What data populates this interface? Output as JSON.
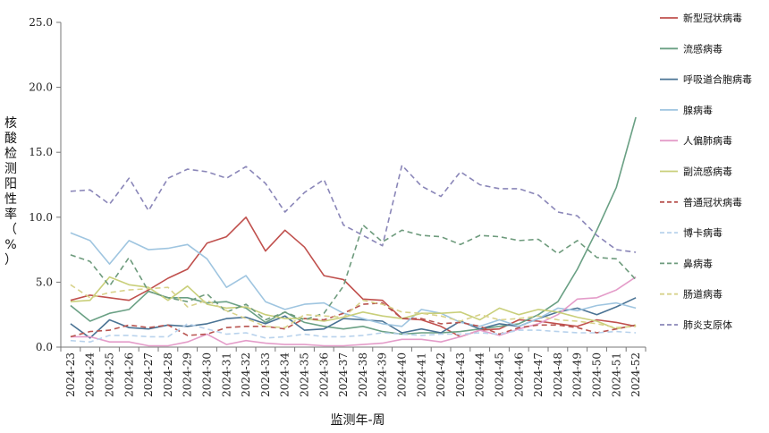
{
  "chart_data": {
    "type": "line",
    "xlabel": "监测年-周",
    "ylabel": "核酸检测阳性率（%）",
    "ylim": [
      0,
      25
    ],
    "yticks": [
      "0.0",
      "5.0",
      "10.0",
      "15.0",
      "20.0",
      "25.0"
    ],
    "ytick_values": [
      0,
      5,
      10,
      15,
      20,
      25
    ],
    "grid": false,
    "legend_position": "right",
    "categories": [
      "2024-23",
      "2024-24",
      "2024-25",
      "2024-26",
      "2024-27",
      "2024-28",
      "2024-29",
      "2024-30",
      "2024-31",
      "2024-32",
      "2024-33",
      "2024-34",
      "2024-35",
      "2024-36",
      "2024-37",
      "2024-38",
      "2024-39",
      "2024-40",
      "2024-41",
      "2024-42",
      "2024-43",
      "2024-44",
      "2024-45",
      "2024-46",
      "2024-47",
      "2024-48",
      "2024-49",
      "2024-50",
      "2024-51",
      "2024-52"
    ],
    "series": [
      {
        "name": "新型冠状病毒",
        "color": "#c0504d",
        "dash": "solid",
        "values": [
          3.6,
          4.0,
          3.8,
          3.6,
          4.4,
          5.3,
          6.0,
          8.0,
          8.5,
          10.0,
          7.4,
          9.0,
          7.7,
          5.5,
          5.2,
          3.7,
          3.6,
          2.2,
          2.1,
          1.6,
          0.8,
          1.3,
          1.4,
          2.1,
          2.0,
          1.8,
          1.6,
          2.1,
          1.9,
          1.6
        ]
      },
      {
        "name": "流感病毒",
        "color": "#6aa084",
        "dash": "solid",
        "values": [
          3.2,
          2.0,
          2.6,
          2.9,
          4.3,
          3.8,
          3.8,
          3.4,
          3.5,
          3.0,
          1.9,
          2.7,
          1.9,
          1.6,
          1.4,
          1.6,
          1.2,
          1.0,
          1.1,
          1.1,
          1.2,
          1.4,
          1.6,
          1.8,
          2.5,
          3.5,
          6.0,
          9.0,
          12.3,
          17.7
        ]
      },
      {
        "name": "呼吸道合胞病毒",
        "color": "#4a7394",
        "dash": "solid",
        "values": [
          1.8,
          0.7,
          2.1,
          1.5,
          1.4,
          1.7,
          1.6,
          1.8,
          2.2,
          2.3,
          1.8,
          2.4,
          1.3,
          1.4,
          2.2,
          2.1,
          2.0,
          1.1,
          1.4,
          1.1,
          2.0,
          1.4,
          1.8,
          1.6,
          2.2,
          2.7,
          3.0,
          2.5,
          3.1,
          3.8
        ]
      },
      {
        "name": "腺病毒",
        "color": "#9fc5e0",
        "dash": "solid",
        "values": [
          8.8,
          8.2,
          6.4,
          8.2,
          7.5,
          7.6,
          7.9,
          6.8,
          4.6,
          5.5,
          3.5,
          2.9,
          3.3,
          3.4,
          2.6,
          2.2,
          1.8,
          1.6,
          2.9,
          2.6,
          1.9,
          1.6,
          2.1,
          1.6,
          2.2,
          3.0,
          2.8,
          3.2,
          3.4,
          3.0
        ]
      },
      {
        "name": "人偏肺病毒",
        "color": "#e49cc9",
        "dash": "solid",
        "values": [
          0.8,
          0.8,
          0.4,
          0.4,
          0.1,
          0.1,
          0.4,
          1.0,
          0.2,
          0.5,
          0.3,
          0.2,
          0.2,
          0.1,
          0.1,
          0.2,
          0.3,
          0.6,
          0.6,
          0.4,
          0.8,
          1.3,
          0.9,
          1.4,
          1.8,
          2.5,
          3.7,
          3.8,
          4.4,
          5.4
        ]
      },
      {
        "name": "副流感病毒",
        "color": "#c9cf7a",
        "dash": "solid",
        "values": [
          3.5,
          3.6,
          5.4,
          4.8,
          4.6,
          3.6,
          4.7,
          3.3,
          3.0,
          3.1,
          2.5,
          2.2,
          2.2,
          2.0,
          2.3,
          2.7,
          2.4,
          2.2,
          2.6,
          2.6,
          2.7,
          2.1,
          3.0,
          2.5,
          2.9,
          2.7,
          2.3,
          2.0,
          1.4,
          1.7
        ]
      },
      {
        "name": "普通冠状病毒",
        "color": "#b85450",
        "dash": "dashed",
        "values": [
          0.8,
          1.2,
          1.3,
          1.7,
          1.5,
          1.7,
          0.9,
          1.0,
          1.5,
          1.6,
          1.6,
          1.4,
          2.2,
          2.1,
          2.6,
          3.3,
          3.4,
          2.2,
          2.2,
          1.8,
          1.9,
          1.6,
          1.0,
          1.5,
          1.7,
          1.7,
          1.5,
          1.1,
          1.4,
          1.7
        ]
      },
      {
        "name": "博卡病毒",
        "color": "#b8d2ec",
        "dash": "dashed",
        "values": [
          0.5,
          0.4,
          0.9,
          0.9,
          0.8,
          0.8,
          1.8,
          1.4,
          1.0,
          1.1,
          0.7,
          0.8,
          1.0,
          0.8,
          0.8,
          0.9,
          1.1,
          1.0,
          0.9,
          1.0,
          1.0,
          1.1,
          1.0,
          1.3,
          1.3,
          1.2,
          1.1,
          1.1,
          1.2,
          1.1
        ]
      },
      {
        "name": "鼻病毒",
        "color": "#6e9b7d",
        "dash": "dashed",
        "values": [
          7.1,
          6.6,
          4.7,
          6.9,
          4.3,
          3.8,
          3.5,
          4.1,
          2.7,
          3.3,
          2.1,
          2.7,
          2.1,
          2.6,
          4.7,
          9.4,
          8.1,
          9.0,
          8.6,
          8.5,
          7.9,
          8.6,
          8.5,
          8.2,
          8.3,
          7.2,
          8.2,
          6.9,
          6.8,
          5.2
        ]
      },
      {
        "name": "肠道病毒",
        "color": "#d8d28a",
        "dash": "dashed",
        "values": [
          4.8,
          3.8,
          4.2,
          4.4,
          4.5,
          4.6,
          3.1,
          3.6,
          2.8,
          2.2,
          1.6,
          1.5,
          2.5,
          2.4,
          2.3,
          3.6,
          3.3,
          2.7,
          2.6,
          2.4,
          2.0,
          2.5,
          2.1,
          2.2,
          2.4,
          2.1,
          2.0,
          1.8,
          1.5,
          1.6
        ]
      },
      {
        "name": "肺炎支原体",
        "color": "#8a86b8",
        "dash": "dashed",
        "values": [
          12.0,
          12.1,
          11.0,
          13.0,
          10.5,
          13.0,
          13.7,
          13.5,
          13.0,
          13.9,
          12.6,
          10.4,
          11.9,
          12.9,
          9.4,
          8.6,
          7.8,
          14.0,
          12.4,
          11.6,
          13.5,
          12.5,
          12.2,
          12.2,
          11.7,
          10.4,
          10.1,
          8.6,
          7.5,
          7.3
        ]
      }
    ]
  }
}
